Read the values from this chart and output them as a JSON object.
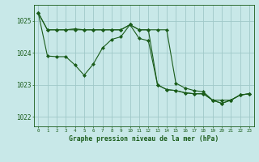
{
  "background_color": "#c8e8e8",
  "grid_color": "#a0c8c8",
  "line_color": "#1a5c1a",
  "title": "Graphe pression niveau de la mer (hPa)",
  "ylabel_ticks": [
    1022,
    1023,
    1024,
    1025
  ],
  "xlim": [
    -0.5,
    23.5
  ],
  "ylim": [
    1021.7,
    1025.5
  ],
  "series1_x": [
    0,
    1,
    2,
    3,
    4,
    5,
    6,
    7,
    8,
    9,
    10,
    11,
    12,
    13,
    14,
    15,
    16,
    17,
    18,
    19,
    20,
    21,
    22,
    23
  ],
  "series1_y": [
    1025.25,
    1024.72,
    1024.72,
    1024.72,
    1024.75,
    1024.72,
    1024.72,
    1024.72,
    1024.72,
    1024.72,
    1024.88,
    1024.72,
    1024.72,
    1024.72,
    1024.72,
    1023.05,
    1022.9,
    1022.82,
    1022.78,
    1022.52,
    1022.52,
    1022.52,
    1022.68,
    1022.72
  ],
  "series2_x": [
    0,
    1,
    2,
    3,
    4,
    5,
    6,
    7,
    8,
    9,
    10,
    11,
    12,
    13,
    14,
    15,
    16,
    17,
    18,
    19,
    20,
    21,
    22,
    23
  ],
  "series2_y": [
    1025.25,
    1023.9,
    1023.88,
    1023.88,
    1023.62,
    1023.3,
    1023.65,
    1024.15,
    1024.42,
    1024.5,
    1024.88,
    1024.45,
    1024.38,
    1023.0,
    1022.85,
    1022.82,
    1022.75,
    1022.72,
    1022.72,
    1022.52,
    1022.42,
    1022.52,
    1022.68,
    1022.72
  ],
  "series3_x": [
    0,
    1,
    2,
    3,
    4,
    5,
    6,
    7,
    8,
    9,
    10,
    11,
    12,
    13,
    14,
    15,
    16,
    17,
    18,
    19,
    20,
    21,
    22,
    23
  ],
  "series3_y": [
    1025.25,
    1024.72,
    1024.72,
    1024.72,
    1024.72,
    1024.72,
    1024.72,
    1024.72,
    1024.72,
    1024.72,
    1024.88,
    1024.72,
    1024.72,
    1023.0,
    1022.85,
    1022.82,
    1022.75,
    1022.72,
    1022.72,
    1022.52,
    1022.42,
    1022.52,
    1022.68,
    1022.72
  ]
}
